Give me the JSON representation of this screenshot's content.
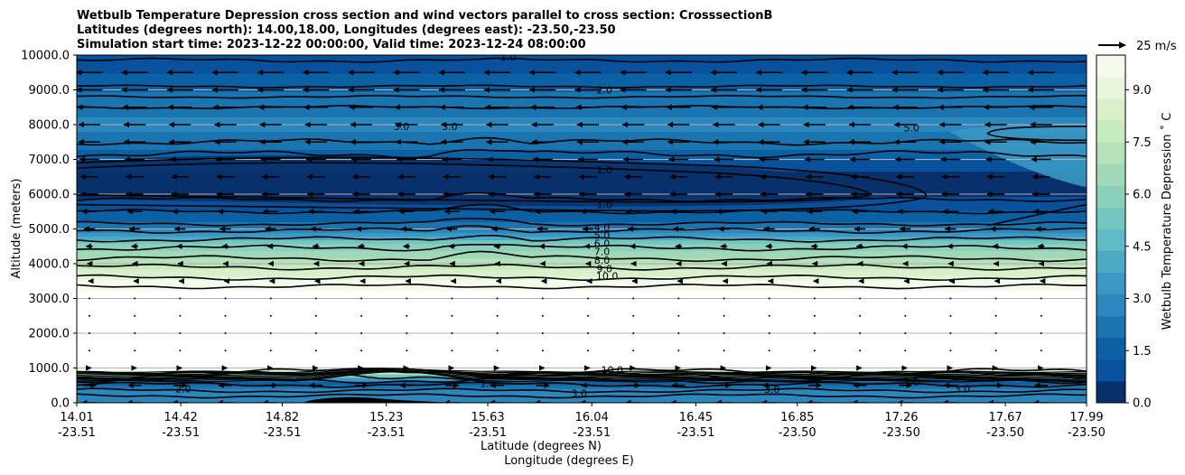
{
  "chart_data": {
    "type": "contourf",
    "title_lines": [
      "Wetbulb Temperature Depression cross section and wind vectors parallel to cross section: CrosssectionB",
      "Latitudes (degrees north): 14.00,18.00, Longitudes (degrees east): -23.50,-23.50",
      "Simulation start time: 2023-12-22 00:00:00, Valid time: 2023-12-24 08:00:00"
    ],
    "ylabel": "Altitude (meters)",
    "xlabel_lat": "Latitude (degrees N)",
    "xlabel_lon": "Longitude (degrees E)",
    "ylim": [
      0,
      10000
    ],
    "y_ticks": [
      0,
      1000,
      2000,
      3000,
      4000,
      5000,
      6000,
      7000,
      8000,
      9000,
      10000
    ],
    "y_tick_labels": [
      "0.0",
      "1000.0",
      "2000.0",
      "3000.0",
      "4000.0",
      "5000.0",
      "6000.0",
      "7000.0",
      "8000.0",
      "9000.0",
      "10000.0"
    ],
    "x_ticks": [
      {
        "lat": "14.01",
        "lon": "-23.51"
      },
      {
        "lat": "14.42",
        "lon": "-23.51"
      },
      {
        "lat": "14.82",
        "lon": "-23.51"
      },
      {
        "lat": "15.23",
        "lon": "-23.51"
      },
      {
        "lat": "15.63",
        "lon": "-23.51"
      },
      {
        "lat": "16.04",
        "lon": "-23.51"
      },
      {
        "lat": "16.45",
        "lon": "-23.51"
      },
      {
        "lat": "16.85",
        "lon": "-23.50"
      },
      {
        "lat": "17.26",
        "lon": "-23.50"
      },
      {
        "lat": "17.67",
        "lon": "-23.50"
      },
      {
        "lat": "17.99",
        "lon": "-23.50"
      }
    ],
    "colorbar": {
      "label": "Wetbulb Temperature Depression ˚ C",
      "range": [
        0,
        10
      ],
      "ticks": [
        "0.0",
        "1.5",
        "3.0",
        "4.5",
        "6.0",
        "7.5",
        "9.0"
      ],
      "colors_low_to_high": [
        "#08306b",
        "#08519c",
        "#0b61a4",
        "#1a74b0",
        "#2b87bd",
        "#3b98c4",
        "#4daac6",
        "#60bbc4",
        "#74c7bf",
        "#8ad0bc",
        "#a1d9b8",
        "#b5e2b8",
        "#c8eabf",
        "#d9f0cb",
        "#e8f6dc",
        "#f4fbeb"
      ]
    },
    "profile": {
      "levels_m": [
        0,
        300,
        600,
        800,
        1000,
        2000,
        3000,
        3500,
        4000,
        4500,
        5000,
        5500,
        6000,
        6500,
        7000,
        7500,
        8000,
        8500,
        9000,
        9500,
        10000
      ],
      "values_c": [
        2.5,
        3.0,
        1.5,
        6.0,
        10.5,
        10.5,
        10.5,
        9.5,
        7.5,
        6.0,
        2.5,
        1.3,
        0.5,
        0.4,
        1.2,
        2.2,
        2.7,
        2.3,
        1.8,
        1.2,
        0.8
      ]
    },
    "contour_labels": [
      {
        "text": "1.0",
        "lat": 15.71,
        "alt": 9850
      },
      {
        "text": "2.0",
        "lat": 16.09,
        "alt": 8900
      },
      {
        "text": "3.0",
        "lat": 15.29,
        "alt": 7850
      },
      {
        "text": "3.0",
        "lat": 15.48,
        "alt": 7850
      },
      {
        "text": "5.0",
        "lat": 17.3,
        "alt": 7800
      },
      {
        "text": "1.0",
        "lat": 16.09,
        "alt": 6600
      },
      {
        "text": "1.0",
        "lat": 16.09,
        "alt": 5600
      },
      {
        "text": "4.0",
        "lat": 16.08,
        "alt": 4930
      },
      {
        "text": "5.0",
        "lat": 16.08,
        "alt": 4720
      },
      {
        "text": "6.0",
        "lat": 16.08,
        "alt": 4480
      },
      {
        "text": "7.0",
        "lat": 16.08,
        "alt": 4250
      },
      {
        "text": "8.0",
        "lat": 16.08,
        "alt": 4000
      },
      {
        "text": "9.0",
        "lat": 16.09,
        "alt": 3750
      },
      {
        "text": "10.0",
        "lat": 16.1,
        "alt": 3550
      },
      {
        "text": "10.0",
        "lat": 16.12,
        "alt": 850
      },
      {
        "text": "2.0",
        "lat": 14.43,
        "alt": 300
      },
      {
        "text": "3.0",
        "lat": 15.99,
        "alt": 170
      },
      {
        "text": "3.0",
        "lat": 16.75,
        "alt": 280
      },
      {
        "text": "3.0",
        "lat": 17.5,
        "alt": 300
      },
      {
        "text": "1.0",
        "lat": 15.63,
        "alt": 450
      },
      {
        "text": "1.0",
        "lat": 17.3,
        "alt": 500
      }
    ],
    "wind": {
      "reference_label": "25 m/s",
      "reference_speed_ms": 25,
      "profile_levels_m": [
        0,
        500,
        1000,
        1500,
        2000,
        2500,
        3000,
        3500,
        4000,
        4500,
        5000,
        5500,
        6000,
        6500,
        7000,
        7500,
        8000,
        8500,
        9000,
        9500
      ],
      "profile_u_ms": [
        -14,
        -12,
        3,
        0.2,
        0.1,
        0,
        -0.5,
        -2,
        -4,
        -6,
        -10,
        -14,
        -16,
        -16,
        -18,
        -20,
        -20,
        -22,
        -24,
        -24
      ]
    }
  }
}
